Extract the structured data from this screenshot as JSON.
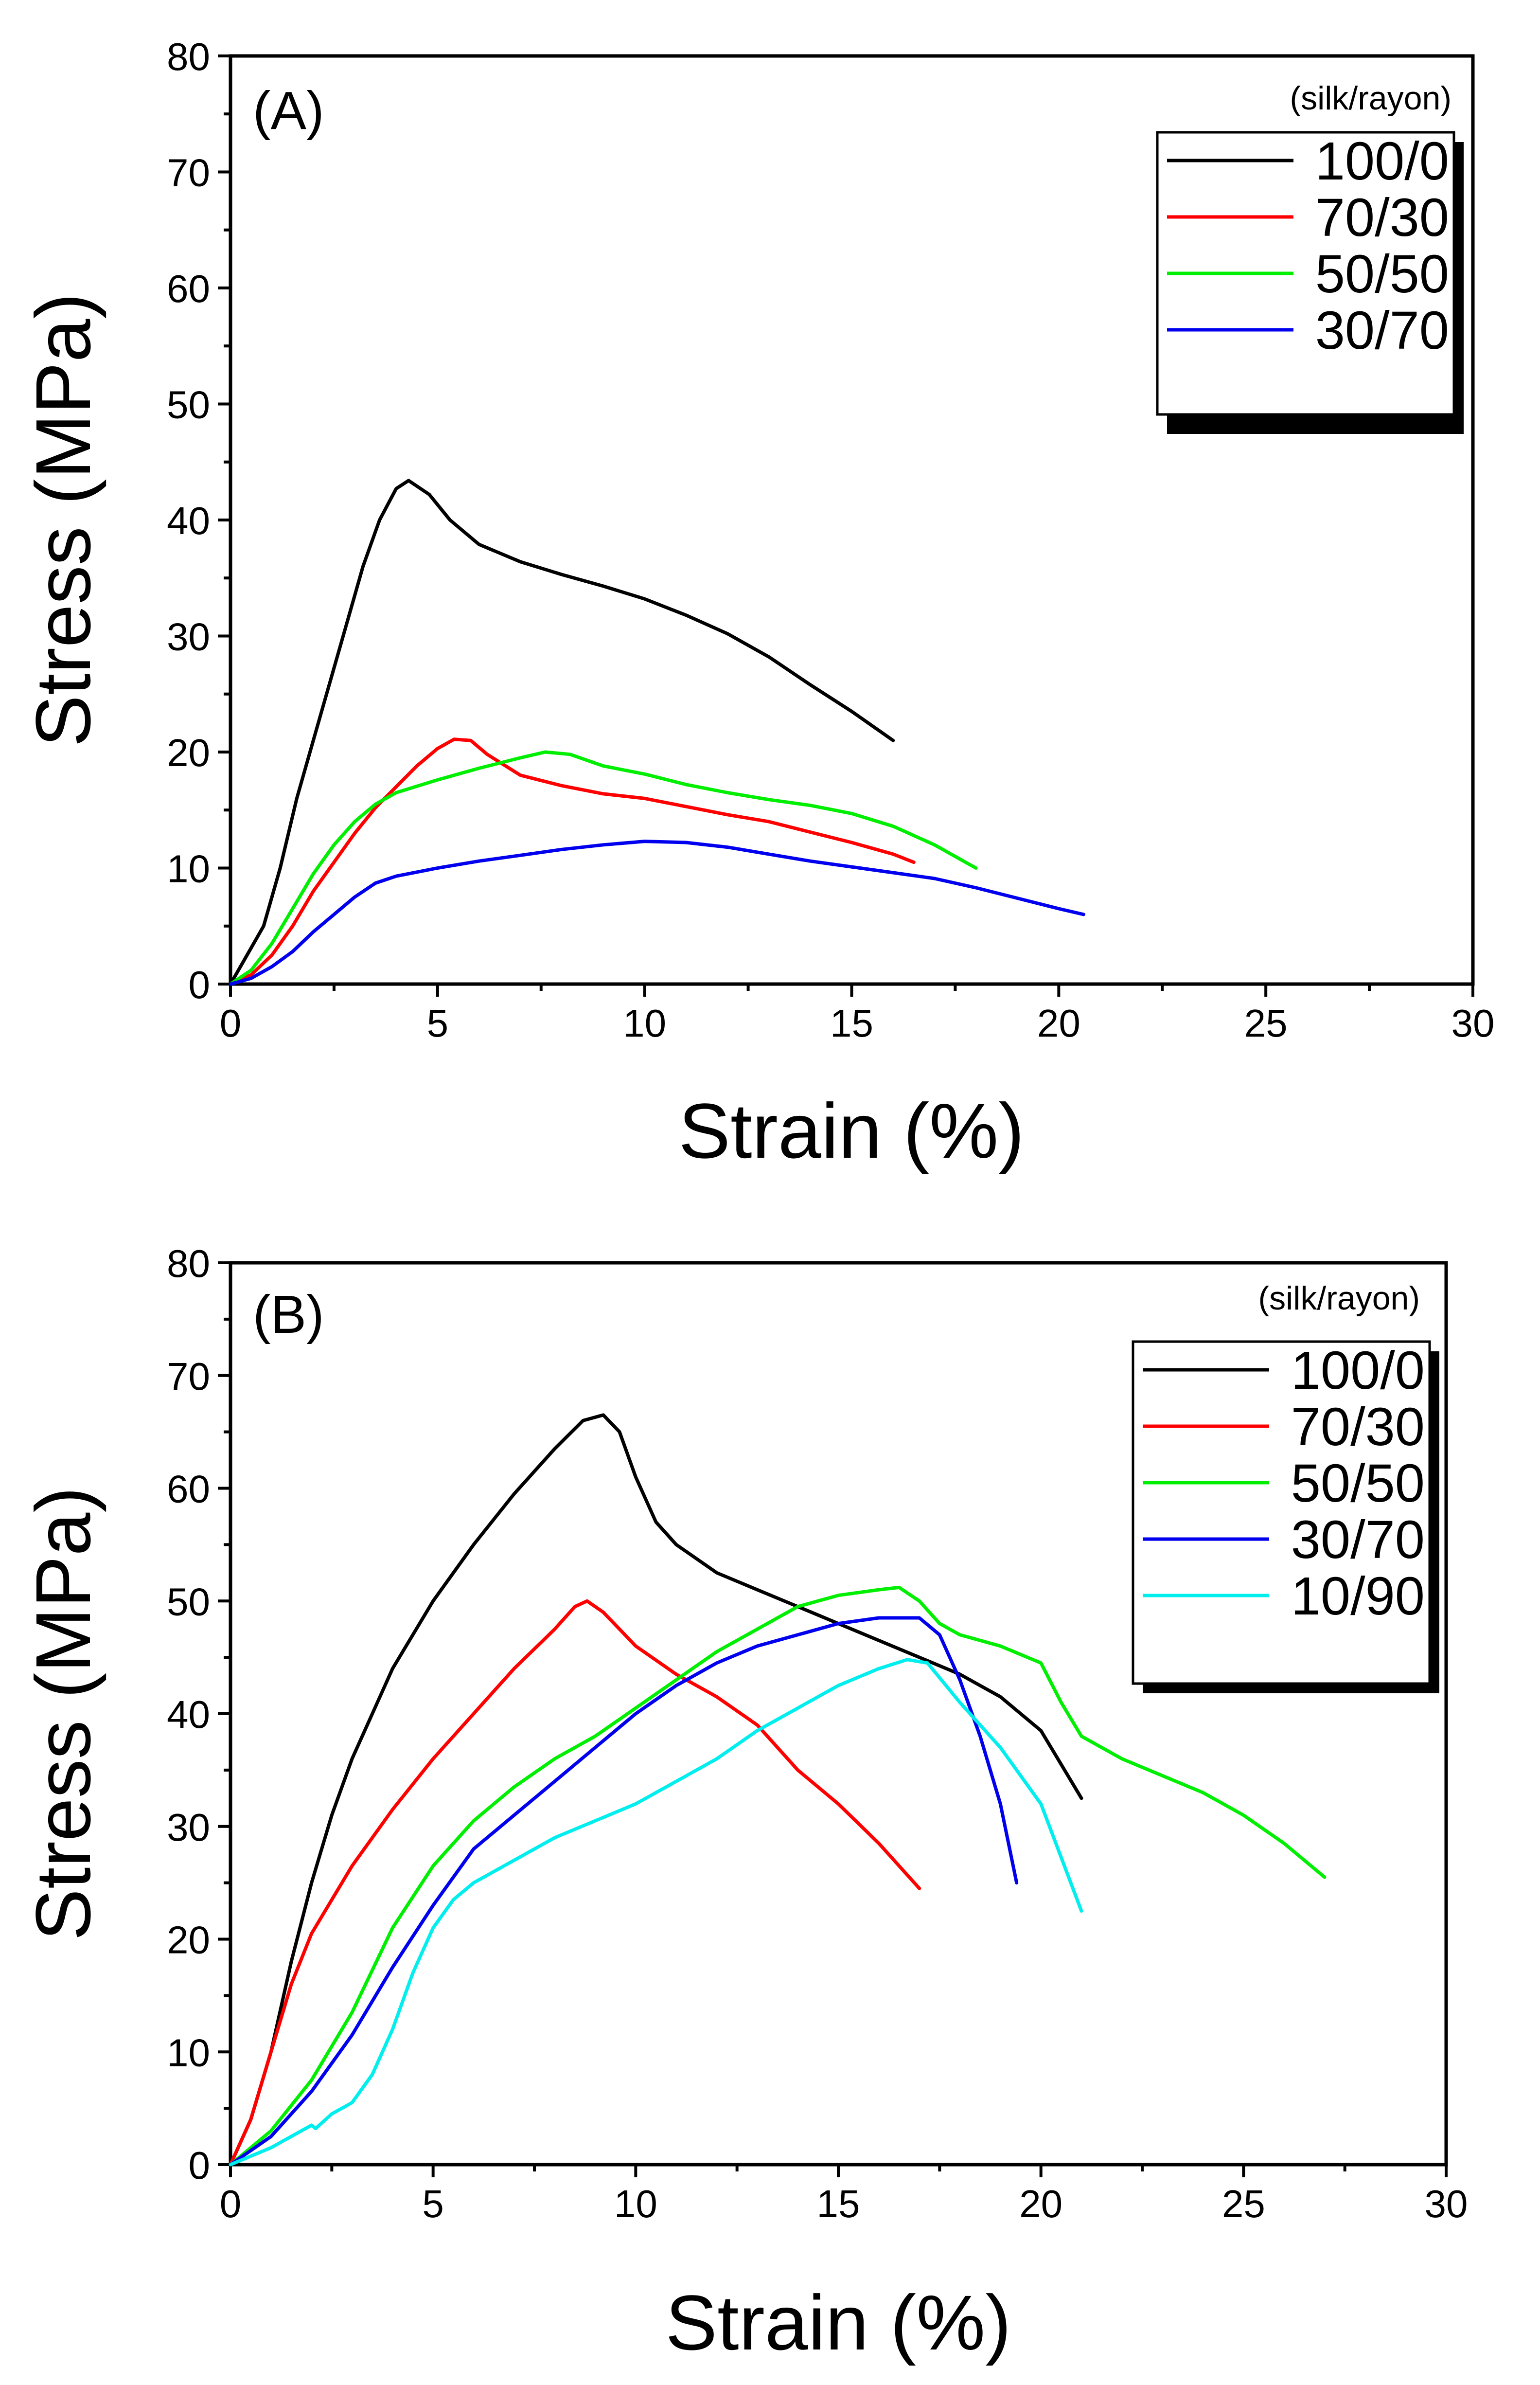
{
  "chart_data": [
    {
      "type": "line",
      "panel_label": "(A)",
      "xlabel": "Strain (%)",
      "ylabel": "Stress (MPa)",
      "xlim": [
        0,
        30
      ],
      "ylim": [
        0,
        80
      ],
      "xticks": [
        "0",
        "5",
        "10",
        "15",
        "20",
        "25",
        "30"
      ],
      "yticks": [
        "0",
        "10",
        "20",
        "30",
        "40",
        "50",
        "60",
        "70",
        "80"
      ],
      "legend_title": "(silk/rayon)",
      "legend_position": "top-right",
      "series": [
        {
          "name": "100/0",
          "color": "#000000",
          "points": [
            [
              0,
              0
            ],
            [
              0.4,
              2.5
            ],
            [
              0.8,
              5
            ],
            [
              1.2,
              10
            ],
            [
              1.6,
              16
            ],
            [
              2.0,
              21
            ],
            [
              2.4,
              26
            ],
            [
              2.8,
              31
            ],
            [
              3.2,
              36
            ],
            [
              3.6,
              40
            ],
            [
              4.0,
              42.7
            ],
            [
              4.3,
              43.4
            ],
            [
              4.8,
              42.2
            ],
            [
              5.3,
              40
            ],
            [
              6.0,
              37.9
            ],
            [
              7.0,
              36.4
            ],
            [
              8.0,
              35.3
            ],
            [
              9.0,
              34.3
            ],
            [
              10.0,
              33.2
            ],
            [
              11.0,
              31.8
            ],
            [
              12.0,
              30.2
            ],
            [
              13.0,
              28.2
            ],
            [
              14.0,
              25.8
            ],
            [
              15.0,
              23.5
            ],
            [
              16.0,
              21
            ]
          ]
        },
        {
          "name": "70/30",
          "color": "#ff0000",
          "points": [
            [
              0,
              0
            ],
            [
              0.5,
              0.8
            ],
            [
              1.0,
              2.5
            ],
            [
              1.5,
              5
            ],
            [
              2.0,
              8
            ],
            [
              2.5,
              10.5
            ],
            [
              3.0,
              13
            ],
            [
              3.5,
              15.2
            ],
            [
              4.0,
              17
            ],
            [
              4.5,
              18.8
            ],
            [
              5.0,
              20.3
            ],
            [
              5.4,
              21.1
            ],
            [
              5.8,
              21
            ],
            [
              6.2,
              19.8
            ],
            [
              7.0,
              18
            ],
            [
              8.0,
              17.1
            ],
            [
              9.0,
              16.4
            ],
            [
              10.0,
              16
            ],
            [
              11.0,
              15.3
            ],
            [
              12.0,
              14.6
            ],
            [
              13.0,
              14
            ],
            [
              14.0,
              13.1
            ],
            [
              15.0,
              12.2
            ],
            [
              16.0,
              11.2
            ],
            [
              16.5,
              10.5
            ]
          ]
        },
        {
          "name": "50/50",
          "color": "#00ee00",
          "points": [
            [
              0,
              0
            ],
            [
              0.5,
              1.2
            ],
            [
              1.0,
              3.5
            ],
            [
              1.5,
              6.5
            ],
            [
              2.0,
              9.5
            ],
            [
              2.5,
              12
            ],
            [
              3.0,
              14
            ],
            [
              3.5,
              15.5
            ],
            [
              4.0,
              16.5
            ],
            [
              5.0,
              17.6
            ],
            [
              6.0,
              18.6
            ],
            [
              7.0,
              19.5
            ],
            [
              7.6,
              20
            ],
            [
              8.2,
              19.8
            ],
            [
              9.0,
              18.8
            ],
            [
              10.0,
              18.1
            ],
            [
              11.0,
              17.2
            ],
            [
              12.0,
              16.5
            ],
            [
              13.0,
              15.9
            ],
            [
              14.0,
              15.4
            ],
            [
              15.0,
              14.7
            ],
            [
              16.0,
              13.6
            ],
            [
              17.0,
              12
            ],
            [
              18.0,
              10
            ]
          ]
        },
        {
          "name": "30/70",
          "color": "#0000ee",
          "points": [
            [
              0,
              0
            ],
            [
              0.5,
              0.5
            ],
            [
              1.0,
              1.5
            ],
            [
              1.5,
              2.8
            ],
            [
              2.0,
              4.5
            ],
            [
              2.5,
              6
            ],
            [
              3.0,
              7.5
            ],
            [
              3.5,
              8.7
            ],
            [
              4.0,
              9.3
            ],
            [
              5.0,
              10
            ],
            [
              6.0,
              10.6
            ],
            [
              7.0,
              11.1
            ],
            [
              8.0,
              11.6
            ],
            [
              9.0,
              12
            ],
            [
              10.0,
              12.3
            ],
            [
              11.0,
              12.2
            ],
            [
              12.0,
              11.8
            ],
            [
              13.0,
              11.2
            ],
            [
              14.0,
              10.6
            ],
            [
              15.0,
              10.1
            ],
            [
              16.0,
              9.6
            ],
            [
              17.0,
              9.1
            ],
            [
              18.0,
              8.3
            ],
            [
              19.0,
              7.4
            ],
            [
              20.0,
              6.5
            ],
            [
              20.6,
              6
            ]
          ]
        }
      ]
    },
    {
      "type": "line",
      "panel_label": "(B)",
      "xlabel": "Strain (%)",
      "ylabel": "Stress (MPa)",
      "xlim": [
        0,
        30
      ],
      "ylim": [
        0,
        80
      ],
      "xticks": [
        "0",
        "5",
        "10",
        "15",
        "20",
        "25",
        "30"
      ],
      "yticks": [
        "0",
        "10",
        "20",
        "30",
        "40",
        "50",
        "60",
        "70",
        "80"
      ],
      "legend_title": "(silk/rayon)",
      "legend_position": "top-right",
      "series": [
        {
          "name": "100/0",
          "color": "#000000",
          "points": [
            [
              0,
              0
            ],
            [
              0.5,
              4
            ],
            [
              1.0,
              10
            ],
            [
              1.5,
              18
            ],
            [
              2.0,
              25
            ],
            [
              2.5,
              31
            ],
            [
              3.0,
              36
            ],
            [
              3.5,
              40
            ],
            [
              4.0,
              44
            ],
            [
              5.0,
              50
            ],
            [
              6.0,
              55
            ],
            [
              7.0,
              59.5
            ],
            [
              8.0,
              63.5
            ],
            [
              8.7,
              66
            ],
            [
              9.2,
              66.5
            ],
            [
              9.6,
              65
            ],
            [
              10.0,
              61
            ],
            [
              10.5,
              57
            ],
            [
              11.0,
              55
            ],
            [
              12.0,
              52.5
            ],
            [
              13.0,
              51
            ],
            [
              14.0,
              49.5
            ],
            [
              15.0,
              48
            ],
            [
              16.0,
              46.5
            ],
            [
              17.0,
              45
            ],
            [
              18.0,
              43.5
            ],
            [
              19.0,
              41.5
            ],
            [
              20.0,
              38.5
            ],
            [
              21.0,
              32.5
            ]
          ]
        },
        {
          "name": "70/30",
          "color": "#ff0000",
          "points": [
            [
              0,
              0
            ],
            [
              0.5,
              4
            ],
            [
              1.0,
              10
            ],
            [
              1.5,
              16
            ],
            [
              2.0,
              20.5
            ],
            [
              3.0,
              26.5
            ],
            [
              4.0,
              31.5
            ],
            [
              5.0,
              36
            ],
            [
              6.0,
              40
            ],
            [
              7.0,
              44
            ],
            [
              8.0,
              47.5
            ],
            [
              8.5,
              49.5
            ],
            [
              8.8,
              50
            ],
            [
              9.2,
              49
            ],
            [
              10.0,
              46
            ],
            [
              11.0,
              43.5
            ],
            [
              12.0,
              41.5
            ],
            [
              13.0,
              39
            ],
            [
              14.0,
              35
            ],
            [
              15.0,
              32
            ],
            [
              16.0,
              28.5
            ],
            [
              17.0,
              24.5
            ]
          ]
        },
        {
          "name": "50/50",
          "color": "#00ee00",
          "points": [
            [
              0,
              0
            ],
            [
              1.0,
              3
            ],
            [
              2.0,
              7.5
            ],
            [
              3.0,
              13.5
            ],
            [
              4.0,
              21
            ],
            [
              5.0,
              26.5
            ],
            [
              6.0,
              30.5
            ],
            [
              7.0,
              33.5
            ],
            [
              8.0,
              36
            ],
            [
              9.0,
              38
            ],
            [
              10.0,
              40.5
            ],
            [
              11.0,
              43
            ],
            [
              12.0,
              45.5
            ],
            [
              13.0,
              47.5
            ],
            [
              14.0,
              49.5
            ],
            [
              15.0,
              50.5
            ],
            [
              16.0,
              51
            ],
            [
              16.5,
              51.2
            ],
            [
              17.0,
              50
            ],
            [
              17.5,
              48
            ],
            [
              18.0,
              47
            ],
            [
              19.0,
              46
            ],
            [
              20.0,
              44.5
            ],
            [
              20.5,
              41
            ],
            [
              21.0,
              38
            ],
            [
              22.0,
              36
            ],
            [
              23.0,
              34.5
            ],
            [
              24.0,
              33
            ],
            [
              25.0,
              31
            ],
            [
              26.0,
              28.5
            ],
            [
              27.0,
              25.5
            ]
          ]
        },
        {
          "name": "30/70",
          "color": "#0000ee",
          "points": [
            [
              0,
              0
            ],
            [
              1.0,
              2.5
            ],
            [
              2.0,
              6.5
            ],
            [
              3.0,
              11.5
            ],
            [
              4.0,
              17.5
            ],
            [
              5.0,
              23
            ],
            [
              6.0,
              28
            ],
            [
              7.0,
              31
            ],
            [
              8.0,
              34
            ],
            [
              9.0,
              37
            ],
            [
              10.0,
              40
            ],
            [
              11.0,
              42.5
            ],
            [
              12.0,
              44.5
            ],
            [
              13.0,
              46
            ],
            [
              14.0,
              47
            ],
            [
              15.0,
              48
            ],
            [
              16.0,
              48.5
            ],
            [
              17.0,
              48.5
            ],
            [
              17.5,
              47
            ],
            [
              18.0,
              43
            ],
            [
              18.5,
              38
            ],
            [
              19.0,
              32
            ],
            [
              19.4,
              25
            ]
          ]
        },
        {
          "name": "10/90",
          "color": "#00eeee",
          "points": [
            [
              0,
              0
            ],
            [
              1.0,
              1.5
            ],
            [
              2.0,
              3.5
            ],
            [
              2.1,
              3.2
            ],
            [
              2.5,
              4.5
            ],
            [
              3.0,
              5.5
            ],
            [
              3.5,
              8
            ],
            [
              4.0,
              12
            ],
            [
              4.5,
              17
            ],
            [
              5.0,
              21
            ],
            [
              5.5,
              23.5
            ],
            [
              6.0,
              25
            ],
            [
              7.0,
              27
            ],
            [
              8.0,
              29
            ],
            [
              9.0,
              30.5
            ],
            [
              10.0,
              32
            ],
            [
              11.0,
              34
            ],
            [
              12.0,
              36
            ],
            [
              13.0,
              38.5
            ],
            [
              14.0,
              40.5
            ],
            [
              15.0,
              42.5
            ],
            [
              16.0,
              44
            ],
            [
              16.7,
              44.8
            ],
            [
              17.2,
              44.5
            ],
            [
              18.0,
              41
            ],
            [
              19.0,
              37
            ],
            [
              20.0,
              32
            ],
            [
              21.0,
              22.5
            ]
          ]
        }
      ]
    }
  ]
}
